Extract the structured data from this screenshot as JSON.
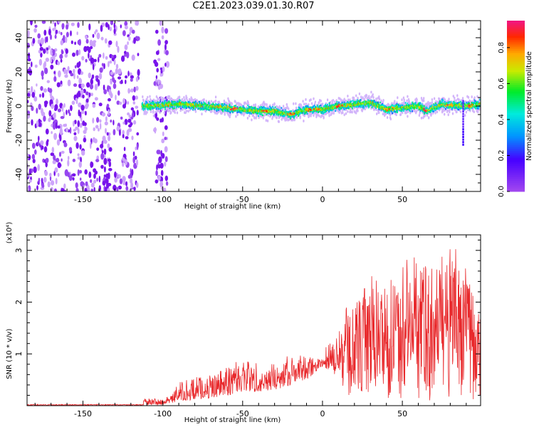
{
  "title": "C2E1.2023.039.01.30.R07",
  "chart_data": [
    {
      "type": "heatmap",
      "xlabel": "Height of straight line (km)",
      "ylabel": "Frequency (Hz)",
      "xlim": [
        -185,
        99
      ],
      "ylim": [
        -50,
        50
      ],
      "x_ticks": [
        -150,
        -100,
        -50,
        0,
        50
      ],
      "y_ticks": [
        -40,
        -20,
        0,
        20,
        40
      ],
      "colorbar": {
        "label": "Normalized spectral amplitude",
        "range": [
          0,
          0.95
        ],
        "ticks": [
          0.0,
          0.2,
          0.4,
          0.6,
          0.8
        ],
        "tick_labels": [
          "0.0",
          "0.2",
          "0.4",
          "0.6",
          "0.8"
        ],
        "colormap": "rainbow (purple-blue-cyan-green-yellow-red-pink)"
      },
      "regions": [
        {
          "x_range": [
            -185,
            -115
          ],
          "description": "broadband noise",
          "freq_range": [
            -50,
            50
          ],
          "amplitude": 0.05
        },
        {
          "x_range": [
            -105,
            -97
          ],
          "description": "noise band",
          "freq_range": [
            -50,
            50
          ],
          "amplitude": 0.05
        },
        {
          "x_range": [
            -113,
            99
          ],
          "description": "signal trace near 0 Hz",
          "freq_center": [
            [
              -113,
              0
            ],
            [
              -90,
              1
            ],
            [
              -60,
              -1
            ],
            [
              -40,
              -3
            ],
            [
              -30,
              -3
            ],
            [
              -20,
              -5
            ],
            [
              -10,
              -2
            ],
            [
              0,
              -2
            ],
            [
              10,
              0
            ],
            [
              30,
              2
            ],
            [
              40,
              -2
            ],
            [
              50,
              -1
            ],
            [
              60,
              0
            ],
            [
              65,
              -3
            ],
            [
              75,
              1
            ],
            [
              88,
              0
            ],
            [
              92,
              0
            ],
            [
              99,
              1
            ]
          ],
          "amplitude_range": [
            0.1,
            0.9
          ]
        }
      ]
    },
    {
      "type": "line",
      "xlabel": "Height of straight line (km)",
      "ylabel": "SNR (10 * v/v)",
      "y_multiplier": "(x10⁴)",
      "xlim": [
        -185,
        99
      ],
      "ylim": [
        0,
        3.3
      ],
      "x_ticks": [
        -150,
        -100,
        -50,
        0,
        50
      ],
      "y_ticks": [
        1,
        2,
        3
      ],
      "series": [
        {
          "color": "#e8282b",
          "envelope": [
            [
              -185,
              0.02
            ],
            [
              -120,
              0.03
            ],
            [
              -110,
              0.15
            ],
            [
              -100,
              0.12
            ],
            [
              -95,
              0.2
            ],
            [
              -90,
              0.45
            ],
            [
              -80,
              0.55
            ],
            [
              -70,
              0.6
            ],
            [
              -60,
              0.75
            ],
            [
              -55,
              0.95
            ],
            [
              -50,
              0.9
            ],
            [
              -40,
              0.85
            ],
            [
              -30,
              0.8
            ],
            [
              -20,
              1.0
            ],
            [
              -10,
              0.95
            ],
            [
              -5,
              0.95
            ],
            [
              0,
              1.0
            ],
            [
              5,
              1.35
            ],
            [
              10,
              1.4
            ],
            [
              15,
              1.9
            ],
            [
              20,
              2.0
            ],
            [
              30,
              2.5
            ],
            [
              40,
              2.55
            ],
            [
              45,
              2.35
            ],
            [
              50,
              2.9
            ],
            [
              60,
              2.9
            ],
            [
              70,
              2.65
            ],
            [
              80,
              3.2
            ],
            [
              90,
              2.7
            ],
            [
              95,
              2.1
            ],
            [
              99,
              1.9
            ]
          ],
          "baseline": [
            [
              -185,
              0.0
            ],
            [
              -120,
              0.0
            ],
            [
              -100,
              0.02
            ],
            [
              -90,
              0.08
            ],
            [
              -70,
              0.15
            ],
            [
              -50,
              0.25
            ],
            [
              -30,
              0.3
            ],
            [
              -10,
              0.5
            ],
            [
              0,
              0.75
            ],
            [
              10,
              0.55
            ],
            [
              15,
              0.1
            ],
            [
              50,
              0.1
            ],
            [
              99,
              0.1
            ]
          ]
        }
      ]
    }
  ]
}
